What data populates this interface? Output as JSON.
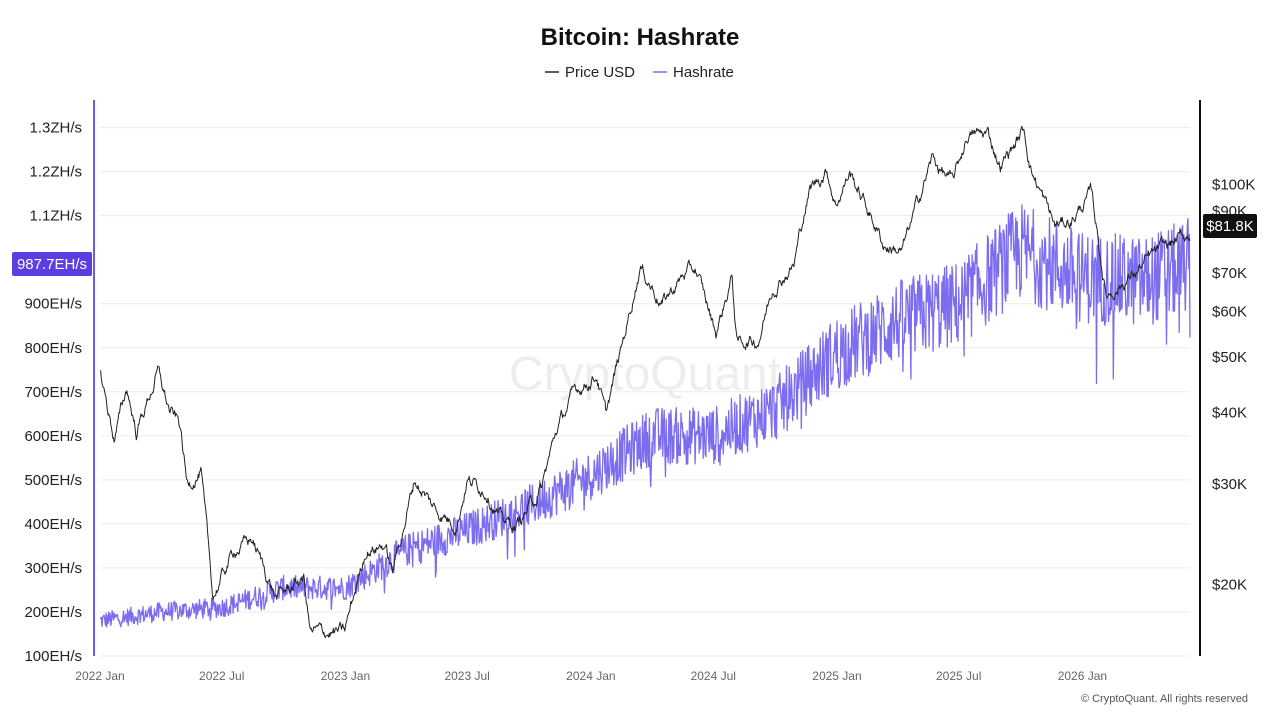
{
  "chart_data": {
    "type": "line",
    "title": "Bitcoin: Hashrate",
    "legend": {
      "placement": "top-center",
      "entries": [
        {
          "name": "Price USD",
          "color": "#222222"
        },
        {
          "name": "Hashrate",
          "color": "#7b6cf0"
        }
      ]
    },
    "grid": true,
    "x_axis": {
      "ticks": [
        "2022 Jan",
        "2022 Jul",
        "2023 Jan",
        "2023 Jul",
        "2024 Jan",
        "2024 Jul",
        "2025 Jan",
        "2025 Jul",
        "2026 Jan"
      ],
      "range": [
        "2022-01-01",
        "2026-06-10"
      ]
    },
    "y_left": {
      "ticks": [
        "100EH/s",
        "200EH/s",
        "300EH/s",
        "400EH/s",
        "500EH/s",
        "600EH/s",
        "700EH/s",
        "800EH/s",
        "900EH/s",
        "1.1ZH/s",
        "1.2ZH/s",
        "1.3ZH/s"
      ],
      "range": [
        100,
        1340
      ],
      "unit": "EH/s",
      "current_label": "987.7EH/s",
      "current_value": 987.7
    },
    "y_right": {
      "scale": "log",
      "ticks": [
        "$20K",
        "$30K",
        "$40K",
        "$50K",
        "$60K",
        "$70K",
        "$90K",
        "$100K"
      ],
      "range": [
        15000,
        135000
      ],
      "unit": "USD",
      "current_label": "$81.8K",
      "current_value": 81800
    },
    "series": [
      {
        "name": "Price USD",
        "axis": "right",
        "points": [
          [
            "2022-01-01",
            47000
          ],
          [
            "2022-01-22",
            36000
          ],
          [
            "2022-02-10",
            44000
          ],
          [
            "2022-02-24",
            37000
          ],
          [
            "2022-03-28",
            47000
          ],
          [
            "2022-04-15",
            40000
          ],
          [
            "2022-04-30",
            38000
          ],
          [
            "2022-05-10",
            30000
          ],
          [
            "2022-05-31",
            31500
          ],
          [
            "2022-06-18",
            19000
          ],
          [
            "2022-07-20",
            23000
          ],
          [
            "2022-08-15",
            24000
          ],
          [
            "2022-09-20",
            19000
          ],
          [
            "2022-10-31",
            20500
          ],
          [
            "2022-11-10",
            16500
          ],
          [
            "2022-12-31",
            16500
          ],
          [
            "2023-01-31",
            23000
          ],
          [
            "2023-02-28",
            23500
          ],
          [
            "2023-03-12",
            21000
          ],
          [
            "2023-04-14",
            30500
          ],
          [
            "2023-05-15",
            27000
          ],
          [
            "2023-06-15",
            25500
          ],
          [
            "2023-07-01",
            30500
          ],
          [
            "2023-07-31",
            29200
          ],
          [
            "2023-08-20",
            26000
          ],
          [
            "2023-09-11",
            25200
          ],
          [
            "2023-10-20",
            29500
          ],
          [
            "2023-11-10",
            37000
          ],
          [
            "2023-12-08",
            43500
          ],
          [
            "2024-01-10",
            46500
          ],
          [
            "2024-01-23",
            39500
          ],
          [
            "2024-02-15",
            51500
          ],
          [
            "2024-03-14",
            72000
          ],
          [
            "2024-04-16",
            62000
          ],
          [
            "2024-05-20",
            70000
          ],
          [
            "2024-06-05",
            71000
          ],
          [
            "2024-07-05",
            55000
          ],
          [
            "2024-07-29",
            69000
          ],
          [
            "2024-08-05",
            53000
          ],
          [
            "2024-09-06",
            53500
          ],
          [
            "2024-09-27",
            66000
          ],
          [
            "2024-10-29",
            72500
          ],
          [
            "2024-11-12",
            88000
          ],
          [
            "2024-11-22",
            98000
          ],
          [
            "2024-12-17",
            106000
          ],
          [
            "2024-12-30",
            92500
          ],
          [
            "2025-01-20",
            105000
          ],
          [
            "2025-02-28",
            84500
          ],
          [
            "2025-03-11",
            78500
          ],
          [
            "2025-04-08",
            76500
          ],
          [
            "2025-05-22",
            111000
          ],
          [
            "2025-06-22",
            100500
          ],
          [
            "2025-07-14",
            122000
          ],
          [
            "2025-08-14",
            122500
          ],
          [
            "2025-09-01",
            108000
          ],
          [
            "2025-10-06",
            124500
          ],
          [
            "2025-10-17",
            106500
          ],
          [
            "2025-11-21",
            84500
          ],
          [
            "2025-12-15",
            86500
          ],
          [
            "2026-01-15",
            96500
          ],
          [
            "2026-02-05",
            64000
          ],
          [
            "2026-02-25",
            66500
          ],
          [
            "2026-03-20",
            70000
          ],
          [
            "2026-04-20",
            76000
          ],
          [
            "2026-05-15",
            79000
          ],
          [
            "2026-06-10",
            81800
          ]
        ]
      },
      {
        "name": "Hashrate",
        "axis": "left",
        "points": [
          [
            "2022-01-01",
            180
          ],
          [
            "2022-04-01",
            200
          ],
          [
            "2022-07-01",
            210
          ],
          [
            "2022-10-01",
            255
          ],
          [
            "2023-01-01",
            255
          ],
          [
            "2023-04-01",
            340
          ],
          [
            "2023-07-01",
            385
          ],
          [
            "2023-10-01",
            440
          ],
          [
            "2024-01-01",
            510
          ],
          [
            "2024-04-01",
            600
          ],
          [
            "2024-07-01",
            600
          ],
          [
            "2024-10-01",
            660
          ],
          [
            "2025-01-01",
            790
          ],
          [
            "2025-04-01",
            860
          ],
          [
            "2025-07-01",
            900
          ],
          [
            "2025-10-01",
            1020
          ],
          [
            "2026-01-01",
            960
          ],
          [
            "2026-04-01",
            950
          ],
          [
            "2026-06-10",
            987.7
          ]
        ]
      }
    ]
  },
  "watermark": "CryptoQuant",
  "footer": {
    "copyright": "© CryptoQuant. All rights reserved"
  },
  "colors": {
    "price_line": "#222222",
    "hashrate_line": "#7b6cf0",
    "left_axis": "#6c5ce7",
    "hash_badge": "#5a3ee0",
    "price_badge": "#111111",
    "grid": "#ececec"
  }
}
